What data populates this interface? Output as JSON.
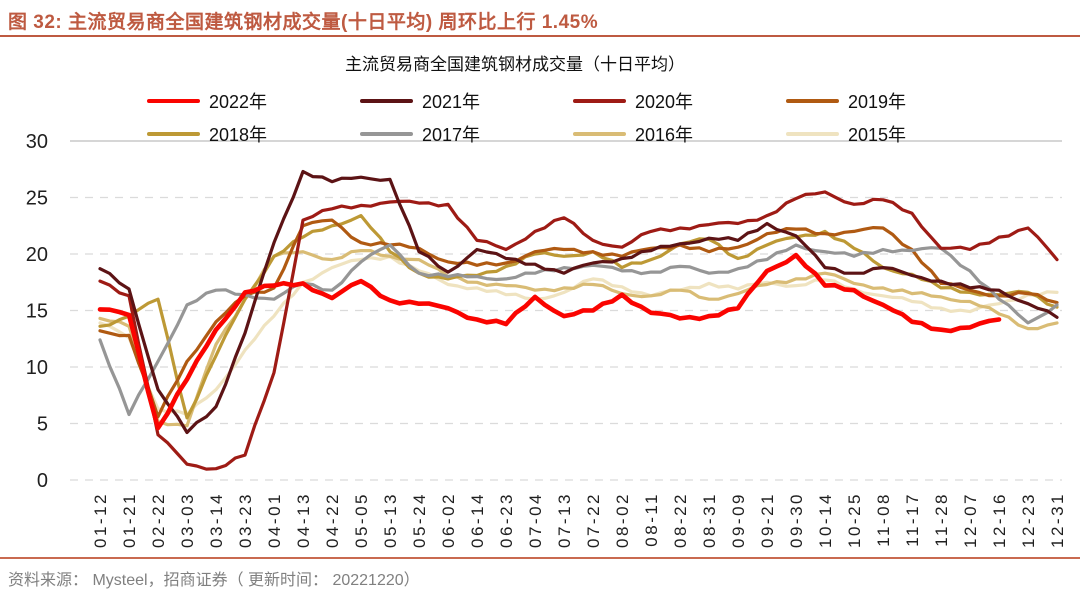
{
  "figure": {
    "title": "图 32: 主流贸易商全国建筑钢材成交量(十日平均) 周环比上行 1.45%",
    "accent_color": "#BE5A41"
  },
  "footer": {
    "text": "资料来源： Mysteel，招商证券（ 更新时间： 20221220）"
  },
  "chart_data": {
    "type": "line",
    "title": "主流贸易商全国建筑钢材成交量（十日平均）",
    "xlabel": "",
    "ylabel": "",
    "ylim": [
      0,
      30
    ],
    "yticks": [
      0,
      5,
      10,
      15,
      20,
      25,
      30
    ],
    "grid": "horizontal dashed, top line solid",
    "legend_position": "top, 2 rows x 4 columns",
    "categories": [
      "01-12",
      "01-21",
      "02-22",
      "03-03",
      "03-14",
      "03-23",
      "04-01",
      "04-13",
      "04-22",
      "05-05",
      "05-13",
      "05-24",
      "06-02",
      "06-14",
      "06-23",
      "07-04",
      "07-13",
      "07-22",
      "08-02",
      "08-11",
      "08-22",
      "08-31",
      "09-09",
      "09-21",
      "09-30",
      "10-14",
      "10-25",
      "11-08",
      "11-17",
      "11-28",
      "12-07",
      "12-16",
      "12-23",
      "12-31"
    ],
    "series": [
      {
        "name": "2022年",
        "color": "#FA0400",
        "width": 4.6,
        "values": [
          15.1,
          14.6,
          4.6,
          8.9,
          13.3,
          16.6,
          17.2,
          17.4,
          16.1,
          17.6,
          15.9,
          15.6,
          15.2,
          14.2,
          13.8,
          16.2,
          14.5,
          15.0,
          16.4,
          14.8,
          14.3,
          14.5,
          15.2,
          18.5,
          19.9,
          17.2,
          16.8,
          15.5,
          14.0,
          13.3,
          13.5,
          14.2,
          null,
          null
        ]
      },
      {
        "name": "2021年",
        "color": "#5C1315",
        "width": 3.2,
        "values": [
          18.7,
          16.9,
          8.0,
          4.2,
          6.5,
          13.0,
          21.0,
          27.3,
          26.4,
          26.8,
          26.6,
          20.2,
          18.4,
          20.4,
          19.6,
          19.1,
          18.3,
          19.2,
          19.6,
          20.3,
          20.9,
          21.4,
          21.2,
          22.7,
          21.6,
          18.8,
          18.3,
          18.8,
          18.1,
          17.6,
          17.0,
          16.8,
          15.6,
          14.4
        ]
      },
      {
        "name": "2020年",
        "color": "#9E1B15",
        "width": 3.2,
        "values": [
          17.6,
          16.3,
          4.0,
          1.4,
          1.0,
          2.2,
          9.5,
          23.0,
          24.0,
          24.3,
          24.6,
          24.5,
          24.4,
          21.2,
          20.4,
          22.0,
          23.2,
          21.2,
          20.6,
          22.0,
          22.3,
          22.6,
          22.7,
          23.4,
          24.9,
          25.5,
          24.4,
          24.8,
          23.6,
          20.5,
          20.4,
          21.5,
          22.3,
          19.5
        ]
      },
      {
        "name": "2019年",
        "color": "#B05A12",
        "width": 3.2,
        "values": [
          13.2,
          12.8,
          5.6,
          10.5,
          14.0,
          16.3,
          17.0,
          22.5,
          23.0,
          21.0,
          20.8,
          20.5,
          19.3,
          19.0,
          19.2,
          20.2,
          20.4,
          20.2,
          19.8,
          20.5,
          20.8,
          20.2,
          20.6,
          21.8,
          22.2,
          21.8,
          22.0,
          22.3,
          20.4,
          17.4,
          16.8,
          16.3,
          16.5,
          15.7
        ]
      },
      {
        "name": "2018年",
        "color": "#BD9935",
        "width": 3.2,
        "values": [
          13.6,
          14.5,
          16.0,
          5.5,
          11.0,
          16.0,
          19.8,
          21.5,
          22.5,
          23.4,
          20.2,
          18.3,
          17.8,
          18.1,
          18.9,
          20.0,
          19.8,
          20.2,
          18.8,
          19.5,
          20.9,
          21.3,
          19.6,
          20.8,
          21.5,
          22.0,
          20.5,
          18.8,
          18.2,
          17.0,
          16.6,
          16.4,
          16.6,
          15.3
        ]
      },
      {
        "name": "2017年",
        "color": "#969696",
        "width": 3.2,
        "values": [
          12.4,
          5.8,
          10.5,
          15.5,
          16.8,
          16.4,
          16.0,
          17.4,
          16.8,
          19.3,
          20.8,
          18.3,
          18.0,
          18.0,
          17.8,
          18.3,
          18.8,
          19.0,
          18.5,
          18.4,
          18.9,
          18.3,
          18.7,
          19.5,
          20.8,
          20.2,
          19.8,
          20.4,
          20.3,
          20.5,
          18.5,
          16.0,
          13.9,
          15.5
        ]
      },
      {
        "name": "2016年",
        "color": "#D9BC75",
        "width": 3.2,
        "values": [
          14.3,
          13.6,
          5.2,
          4.8,
          12.0,
          16.0,
          19.8,
          20.2,
          19.5,
          20.3,
          19.8,
          19.5,
          18.0,
          17.5,
          17.2,
          16.8,
          17.0,
          17.3,
          16.5,
          16.3,
          16.8,
          16.0,
          16.5,
          17.3,
          17.8,
          18.3,
          17.4,
          17.0,
          16.5,
          16.2,
          15.8,
          14.7,
          13.4,
          13.9
        ]
      },
      {
        "name": "2015年",
        "color": "#EFE3C0",
        "width": 3.2,
        "values": [
          13.9,
          12.6,
          6.3,
          5.8,
          8.0,
          11.5,
          14.5,
          17.5,
          18.8,
          19.5,
          19.8,
          18.5,
          17.3,
          17.0,
          16.4,
          16.0,
          16.6,
          17.8,
          17.1,
          16.3,
          16.8,
          17.4,
          16.9,
          17.5,
          17.2,
          17.7,
          16.9,
          16.3,
          15.8,
          15.2,
          14.9,
          15.6,
          16.4,
          16.6
        ]
      }
    ]
  }
}
